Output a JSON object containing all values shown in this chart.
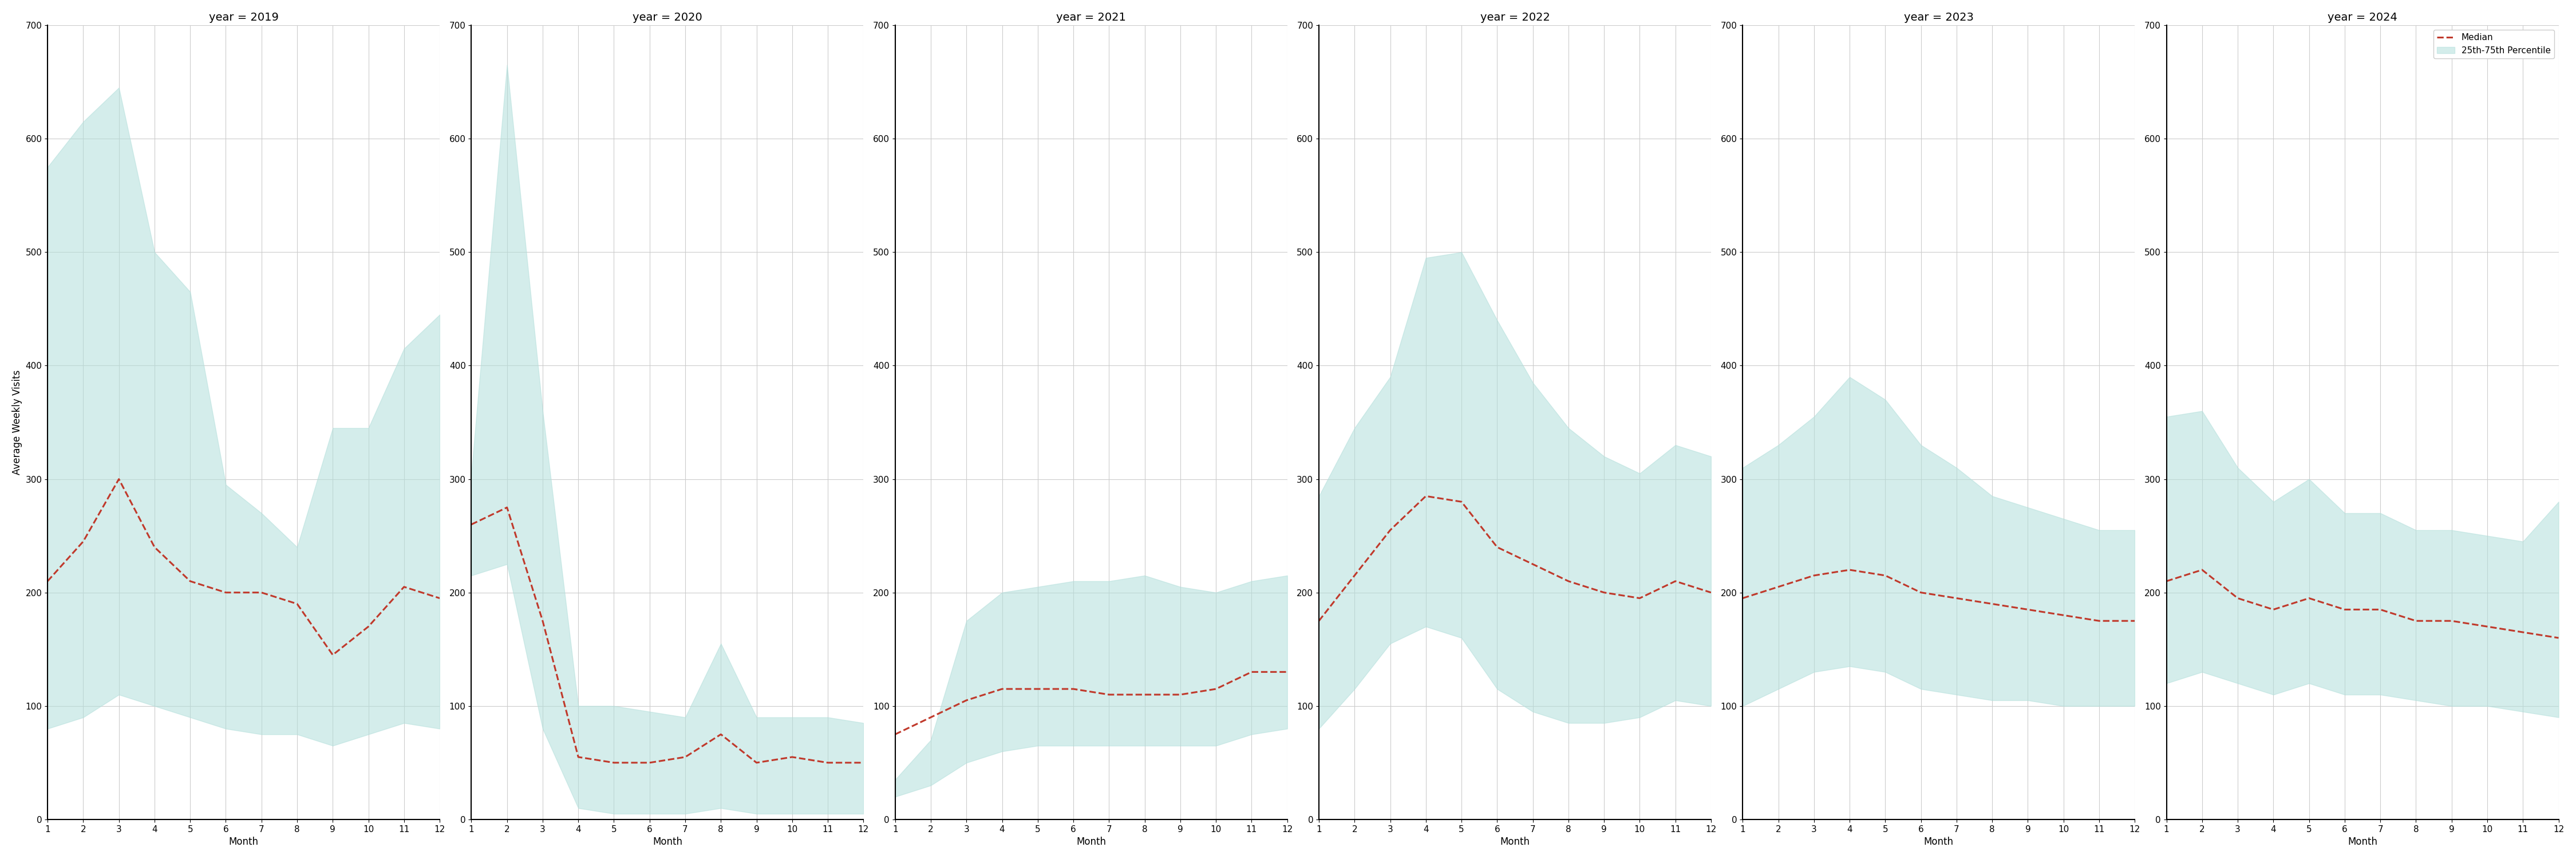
{
  "years": [
    2019,
    2020,
    2021,
    2022,
    2023,
    2024
  ],
  "months": [
    1,
    2,
    3,
    4,
    5,
    6,
    7,
    8,
    9,
    10,
    11,
    12
  ],
  "median": {
    "2019": [
      210,
      245,
      300,
      240,
      210,
      200,
      200,
      190,
      145,
      170,
      205,
      195
    ],
    "2020": [
      260,
      275,
      175,
      55,
      50,
      50,
      55,
      75,
      50,
      55,
      50,
      50
    ],
    "2021": [
      75,
      90,
      105,
      115,
      115,
      115,
      110,
      110,
      110,
      115,
      130,
      130
    ],
    "2022": [
      175,
      215,
      255,
      285,
      280,
      240,
      225,
      210,
      200,
      195,
      210,
      200
    ],
    "2023": [
      195,
      205,
      215,
      220,
      215,
      200,
      195,
      190,
      185,
      180,
      175,
      175
    ],
    "2024": [
      210,
      220,
      195,
      185,
      195,
      185,
      185,
      175,
      175,
      170,
      165,
      160
    ]
  },
  "q25": {
    "2019": [
      80,
      90,
      110,
      100,
      90,
      80,
      75,
      75,
      65,
      75,
      85,
      80
    ],
    "2020": [
      215,
      225,
      80,
      10,
      5,
      5,
      5,
      10,
      5,
      5,
      5,
      5
    ],
    "2021": [
      20,
      30,
      50,
      60,
      65,
      65,
      65,
      65,
      65,
      65,
      75,
      80
    ],
    "2022": [
      80,
      115,
      155,
      170,
      160,
      115,
      95,
      85,
      85,
      90,
      105,
      100
    ],
    "2023": [
      100,
      115,
      130,
      135,
      130,
      115,
      110,
      105,
      105,
      100,
      100,
      100
    ],
    "2024": [
      120,
      130,
      120,
      110,
      120,
      110,
      110,
      105,
      100,
      100,
      95,
      90
    ]
  },
  "q75": {
    "2019": [
      575,
      615,
      645,
      500,
      465,
      295,
      270,
      240,
      345,
      345,
      415,
      445
    ],
    "2020": [
      305,
      665,
      360,
      100,
      100,
      95,
      90,
      155,
      90,
      90,
      90,
      85
    ],
    "2021": [
      35,
      70,
      175,
      200,
      205,
      210,
      210,
      215,
      205,
      200,
      210,
      215
    ],
    "2022": [
      285,
      345,
      390,
      495,
      500,
      440,
      385,
      345,
      320,
      305,
      330,
      320
    ],
    "2023": [
      310,
      330,
      355,
      390,
      370,
      330,
      310,
      285,
      275,
      265,
      255,
      255
    ],
    "2024": [
      355,
      360,
      310,
      280,
      300,
      270,
      270,
      255,
      255,
      250,
      245,
      280
    ]
  },
  "fill_color": "#b2dfdb",
  "fill_alpha": 0.55,
  "line_color": "#c0392b",
  "line_style": "--",
  "line_width": 2.2,
  "ylabel": "Average Weekly Visits",
  "xlabel": "Month",
  "ylim": [
    0,
    700
  ],
  "yticks": [
    0,
    100,
    200,
    300,
    400,
    500,
    600,
    700
  ],
  "xticks": [
    1,
    2,
    3,
    4,
    5,
    6,
    7,
    8,
    9,
    10,
    11,
    12
  ],
  "grid_color": "#cccccc",
  "bg_color": "#ffffff",
  "legend_labels": [
    "Median",
    "25th-75th Percentile"
  ],
  "title_fontsize": 14,
  "label_fontsize": 12,
  "tick_fontsize": 11
}
